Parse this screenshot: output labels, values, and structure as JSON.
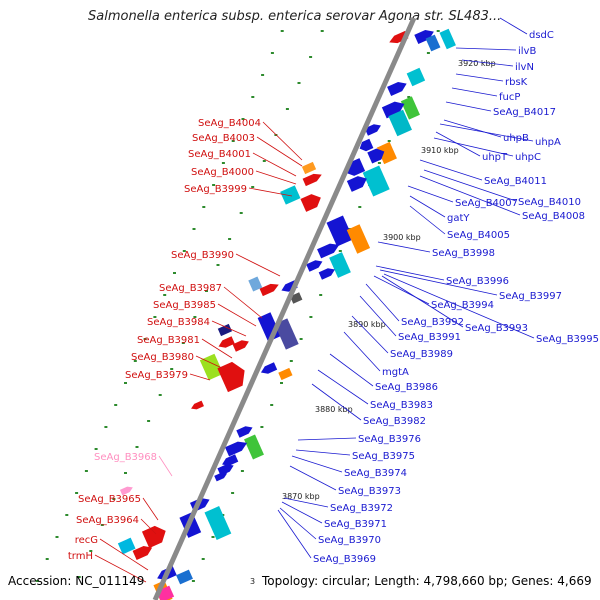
{
  "title": "Salmonella enterica subsp. enterica serovar Agona str. SL483...",
  "footer": {
    "accession": "Accession: NC_011149",
    "stats": "Topology: circular; Length: 4,798,660 bp; Genes: 4,669"
  },
  "colors": {
    "backbone": "#8a8a8a",
    "forward_label": "#1a1ad0",
    "reverse_label": "#d01010",
    "faded_label": "#ff8fc0",
    "tick": "#2e8b2e"
  },
  "scale_labels": [
    "3920 kbp",
    "3910 kbp",
    "3900 kbp",
    "3890 kbp",
    "3880 kbp",
    "3870 kbp",
    "3"
  ],
  "forward_genes": [
    "dsdC",
    "ilvB",
    "ilvN",
    "rbsK",
    "fucP",
    "SeAg_B4017",
    "uhpB",
    "uhpA",
    "uhpT",
    "uhpC",
    "SeAg_B4011",
    "SeAg_B4007",
    "SeAg_B4010",
    "SeAg_B4008",
    "gatY",
    "SeAg_B4005",
    "SeAg_B3998",
    "SeAg_B3996",
    "SeAg_B3997",
    "SeAg_B3994",
    "SeAg_B3992",
    "SeAg_B3993",
    "SeAg_B3995",
    "SeAg_B3991",
    "SeAg_B3989",
    "mgtA",
    "SeAg_B3986",
    "SeAg_B3983",
    "SeAg_B3982",
    "SeAg_B3976",
    "SeAg_B3975",
    "SeAg_B3974",
    "SeAg_B3973",
    "SeAg_B3972",
    "SeAg_B3971",
    "SeAg_B3970",
    "SeAg_B3969"
  ],
  "reverse_genes": [
    "SeAg_B4004",
    "SeAg_B4003",
    "SeAg_B4001",
    "SeAg_B4000",
    "SeAg_B3999",
    "SeAg_B3990",
    "SeAg_B3987",
    "SeAg_B3985",
    "SeAg_B3984",
    "SeAg_B3981",
    "SeAg_B3980",
    "SeAg_B3979",
    "SeAg_B3968",
    "SeAg_B3965",
    "SeAg_B3964",
    "recG",
    "trmH"
  ]
}
